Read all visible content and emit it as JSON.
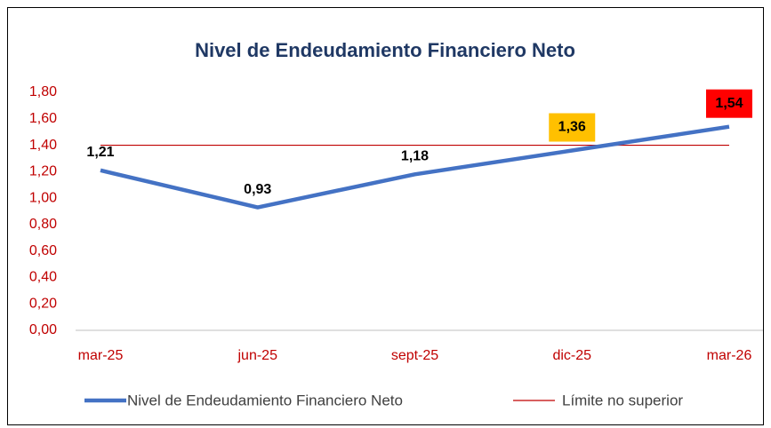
{
  "chart_data": {
    "type": "line",
    "title": "Nivel de Endeudamiento Financiero Neto",
    "categories": [
      "mar-25",
      "jun-25",
      "sept-25",
      "dic-25",
      "mar-26"
    ],
    "series": [
      {
        "name": "Nivel de Endeudamiento Financiero Neto",
        "color": "#4472c4",
        "values": [
          1.21,
          0.93,
          1.18,
          1.36,
          1.54
        ],
        "value_labels": [
          "1,21",
          "0,93",
          "1,18",
          "1,36",
          "1,54"
        ],
        "label_backgrounds": [
          null,
          null,
          null,
          "#ffc000",
          "#ff0000"
        ]
      },
      {
        "name": "Límite no superior",
        "color": "#c00000",
        "values": [
          1.4,
          1.4,
          1.4,
          1.4,
          1.4
        ]
      }
    ],
    "ylim": [
      0,
      1.8
    ],
    "yticks": [
      {
        "value": 0,
        "label": "0,00"
      },
      {
        "value": 0.2,
        "label": "0,20"
      },
      {
        "value": 0.4,
        "label": "0,40"
      },
      {
        "value": 0.6,
        "label": "0,60"
      },
      {
        "value": 0.8,
        "label": "0,80"
      },
      {
        "value": 1.0,
        "label": "1,00"
      },
      {
        "value": 1.2,
        "label": "1,20"
      },
      {
        "value": 1.4,
        "label": "1,40"
      },
      {
        "value": 1.6,
        "label": "1,60"
      },
      {
        "value": 1.8,
        "label": "1,80"
      }
    ],
    "legend": "bottom"
  }
}
